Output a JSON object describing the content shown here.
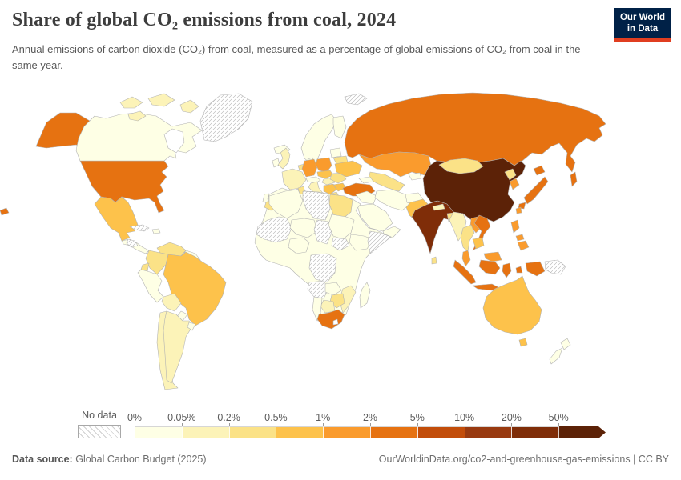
{
  "header": {
    "title": "Share of global CO₂ emissions from coal, 2024",
    "subtitle": "Annual emissions of carbon dioxide (CO₂) from coal, measured as a percentage of global emissions of CO₂ from coal in the same year."
  },
  "logo": {
    "line1": "Our World",
    "line2": "in Data",
    "bg_color": "#002147",
    "accent_color": "#e03e20"
  },
  "footer": {
    "datasource_label": "Data source:",
    "datasource_value": "Global Carbon Budget (2025)",
    "link": "OurWorldinData.org/co2-and-greenhouse-gas-emissions",
    "separator": "|",
    "license": "CC BY"
  },
  "chart_data": {
    "type": "choropleth_map",
    "title": "Share of global CO₂ emissions from coal, 2024",
    "unit": "% of global CO₂ emissions from coal",
    "year": 2024,
    "projection": "world",
    "legend": {
      "no_data_label": "No data",
      "ticks": [
        "0%",
        "0.05%",
        "0.2%",
        "0.5%",
        "1%",
        "2%",
        "5%",
        "10%",
        "20%",
        "50%"
      ],
      "bin_labels": [
        "0-0.05%",
        "0.05-0.2%",
        "0.2-0.5%",
        "0.5-1%",
        "1-2%",
        "2-5%",
        "5-10%",
        "10-20%",
        "20-50%",
        "50%+"
      ],
      "bin_colors": [
        "#feffe5",
        "#fcf3b8",
        "#fbe287",
        "#fdc24b",
        "#fa9b2d",
        "#e67211",
        "#c24d0a",
        "#993a10",
        "#7f2d08",
        "#5c2207"
      ],
      "no_data_pattern": "diagonal-hatch",
      "open_ended_arrow": true
    },
    "countries": {
      "China": "50%+",
      "India": "20-50%",
      "United States": "2-5%",
      "Russia": "2-5%",
      "Turkey": "2-5%",
      "Japan": "2-5%",
      "Vietnam": "2-5%",
      "Indonesia": "2-5%",
      "South Africa": "2-5%",
      "Germany": "1-2%",
      "Poland": "1-2%",
      "Kazakhstan": "1-2%",
      "South Korea": "1-2%",
      "Taiwan": "1-2%",
      "Laos": "1-2%",
      "Malaysia": "1-2%",
      "Philippines": "1-2%",
      "Australia": "0.5-1%",
      "Brazil": "0.5-1%",
      "Mexico": "0.5-1%",
      "Pakistan": "0.5-1%",
      "Ukraine": "0.5-1%",
      "Czechia": "0.5-1%",
      "Serbia": "0.5-1%",
      "Bulgaria": "0.5-1%",
      "Cambodia": "0.5-1%",
      "Colombia": "0.2-0.5%",
      "Venezuela": "0.2-0.5%",
      "Mongolia": "0.2-0.5%",
      "Thailand": "0.2-0.5%",
      "Egypt": "0.2-0.5%",
      "Morocco": "0.2-0.5%",
      "Tunisia": "0.2-0.5%",
      "Zimbabwe": "0.2-0.5%",
      "Romania": "0.2-0.5%",
      "Greece": "0.2-0.5%",
      "Bangladesh": "0.2-0.5%",
      "North Korea": "0.2-0.5%",
      "Uzbekistan": "0.2-0.5%",
      "Ecuador": "0.2-0.5%",
      "Sri Lanka": "0.2-0.5%",
      "Benelux": "0.2-0.5%",
      "Belarus": "0.2-0.5%",
      "Canada": "0.05-0.2%",
      "United Kingdom": "0.05-0.2%",
      "France": "0.05-0.2%",
      "Spain": "0.05-0.2%",
      "Italy": "0.05-0.2%",
      "Hungary": "0.05-0.2%",
      "Chile": "0.05-0.2%",
      "Bolivia": "0.05-0.2%",
      "Argentina": "0.05-0.2%",
      "Myanmar": "0.05-0.2%",
      "Nepal": "0.05-0.2%",
      "Botswana": "0.05-0.2%",
      "Mozambique": "0.05-0.2%",
      "Greenland": "No data",
      "Svalbard": "No data",
      "Cuba": "No data",
      "Nicaragua": "No data",
      "Western Sahara-Mauritania-Mali": "No data",
      "Libya": "No data",
      "Chad": "No data",
      "Somalia": "No data",
      "South Sudan": "No data",
      "DR Congo": "No data",
      "Angola": "No data",
      "Papua New Guinea": "No data"
    }
  }
}
